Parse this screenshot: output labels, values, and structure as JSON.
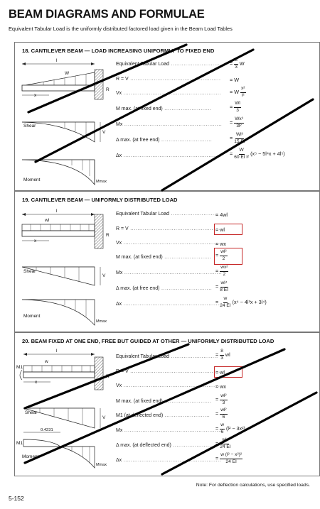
{
  "page": {
    "title": "BEAM DIAGRAMS AND FORMULAE",
    "subtitle": "Equivalent Tabular Load is the uniformly distributed factored load given in the Beam Load Tables",
    "note": "Note: For deflection calculations, use specified loads.",
    "page_number": "5-152"
  },
  "case18": {
    "title": "18. CANTILEVER BEAM — LOAD INCREASING UNIFORMLY TO FIXED END",
    "labels": {
      "l": "l",
      "w": "W",
      "x": "x",
      "r": "R",
      "shear": "Shear",
      "v": "V",
      "moment": "Moment",
      "mmax": "Mmax"
    },
    "formulas": [
      {
        "lhs": "Equivalent Tabular Load",
        "num": "8",
        "den": "3",
        "rhs": "W"
      },
      {
        "lhs": "R = V",
        "rhs": "W"
      },
      {
        "lhs": "Vx",
        "pre": "W",
        "num": "x²",
        "den": "l²"
      },
      {
        "lhs": "M max. (at fixed end)",
        "num": "Wl",
        "den": "3"
      },
      {
        "lhs": "Mx",
        "num": "Wx³",
        "den": "3l²"
      },
      {
        "lhs": "Δ max. (at free end)",
        "num": "Wl³",
        "den": "15 EI"
      },
      {
        "lhs": "Δx",
        "num": "W",
        "den": "60 EI l²",
        "post": "(x⁵ − 5l⁴x + 4l⁵)"
      }
    ]
  },
  "case19": {
    "title": "19. CANTILEVER BEAM — UNIFORMLY DISTRIBUTED LOAD",
    "labels": {
      "l": "l",
      "w": "wl",
      "x": "x",
      "r": "R",
      "shear": "Shear",
      "v": "V",
      "moment": "Moment",
      "mmax": "Mmax"
    },
    "formulas": [
      {
        "lhs": "Equivalent Tabular Load",
        "rhs": "4wl"
      },
      {
        "lhs": "R = V",
        "rhs": "wl"
      },
      {
        "lhs": "Vx",
        "rhs": "wx"
      },
      {
        "lhs": "M max. (at fixed end)",
        "num": "wl²",
        "den": "2"
      },
      {
        "lhs": "Mx",
        "num": "wx²",
        "den": "2"
      },
      {
        "lhs": "Δ max. (at free end)",
        "num": "wl⁴",
        "den": "8 EI"
      },
      {
        "lhs": "Δx",
        "num": "w",
        "den": "24 EI",
        "post": "(x⁴ − 4l³x + 3l⁴)"
      }
    ]
  },
  "case20": {
    "title": "20. BEAM FIXED AT ONE END, FREE BUT GUIDED AT OTHER — UNIFORMLY DISTRIBUTED LOAD",
    "labels": {
      "l": "l",
      "w": "w",
      "x": "x",
      "r": "R",
      "m1": "M1",
      "shear": "Shear",
      "v": "V",
      "m1b": "M1",
      "moment": "Moment",
      "mmax": "Mmax",
      "dim": "0.4231"
    },
    "formulas": [
      {
        "lhs": "Equivalent Tabular Load",
        "num": "8",
        "den": "3",
        "rhs": "wl"
      },
      {
        "lhs": "R = V",
        "rhs": "wl"
      },
      {
        "lhs": "Vx",
        "rhs": "wx"
      },
      {
        "lhs": "M max. (at fixed end)",
        "num": "wl²",
        "den": "3"
      },
      {
        "lhs": "M1 (at deflected end)",
        "num": "wl²",
        "den": "6"
      },
      {
        "lhs": "Mx",
        "num": "w",
        "den": "6",
        "post": "(l² − 3x²)"
      },
      {
        "lhs": "Δ max. (at deflected end)",
        "num": "wl⁴",
        "den": "24 EI"
      },
      {
        "lhs": "Δx",
        "num": "w (l² − x²)²",
        "den": "24 EI"
      }
    ]
  }
}
